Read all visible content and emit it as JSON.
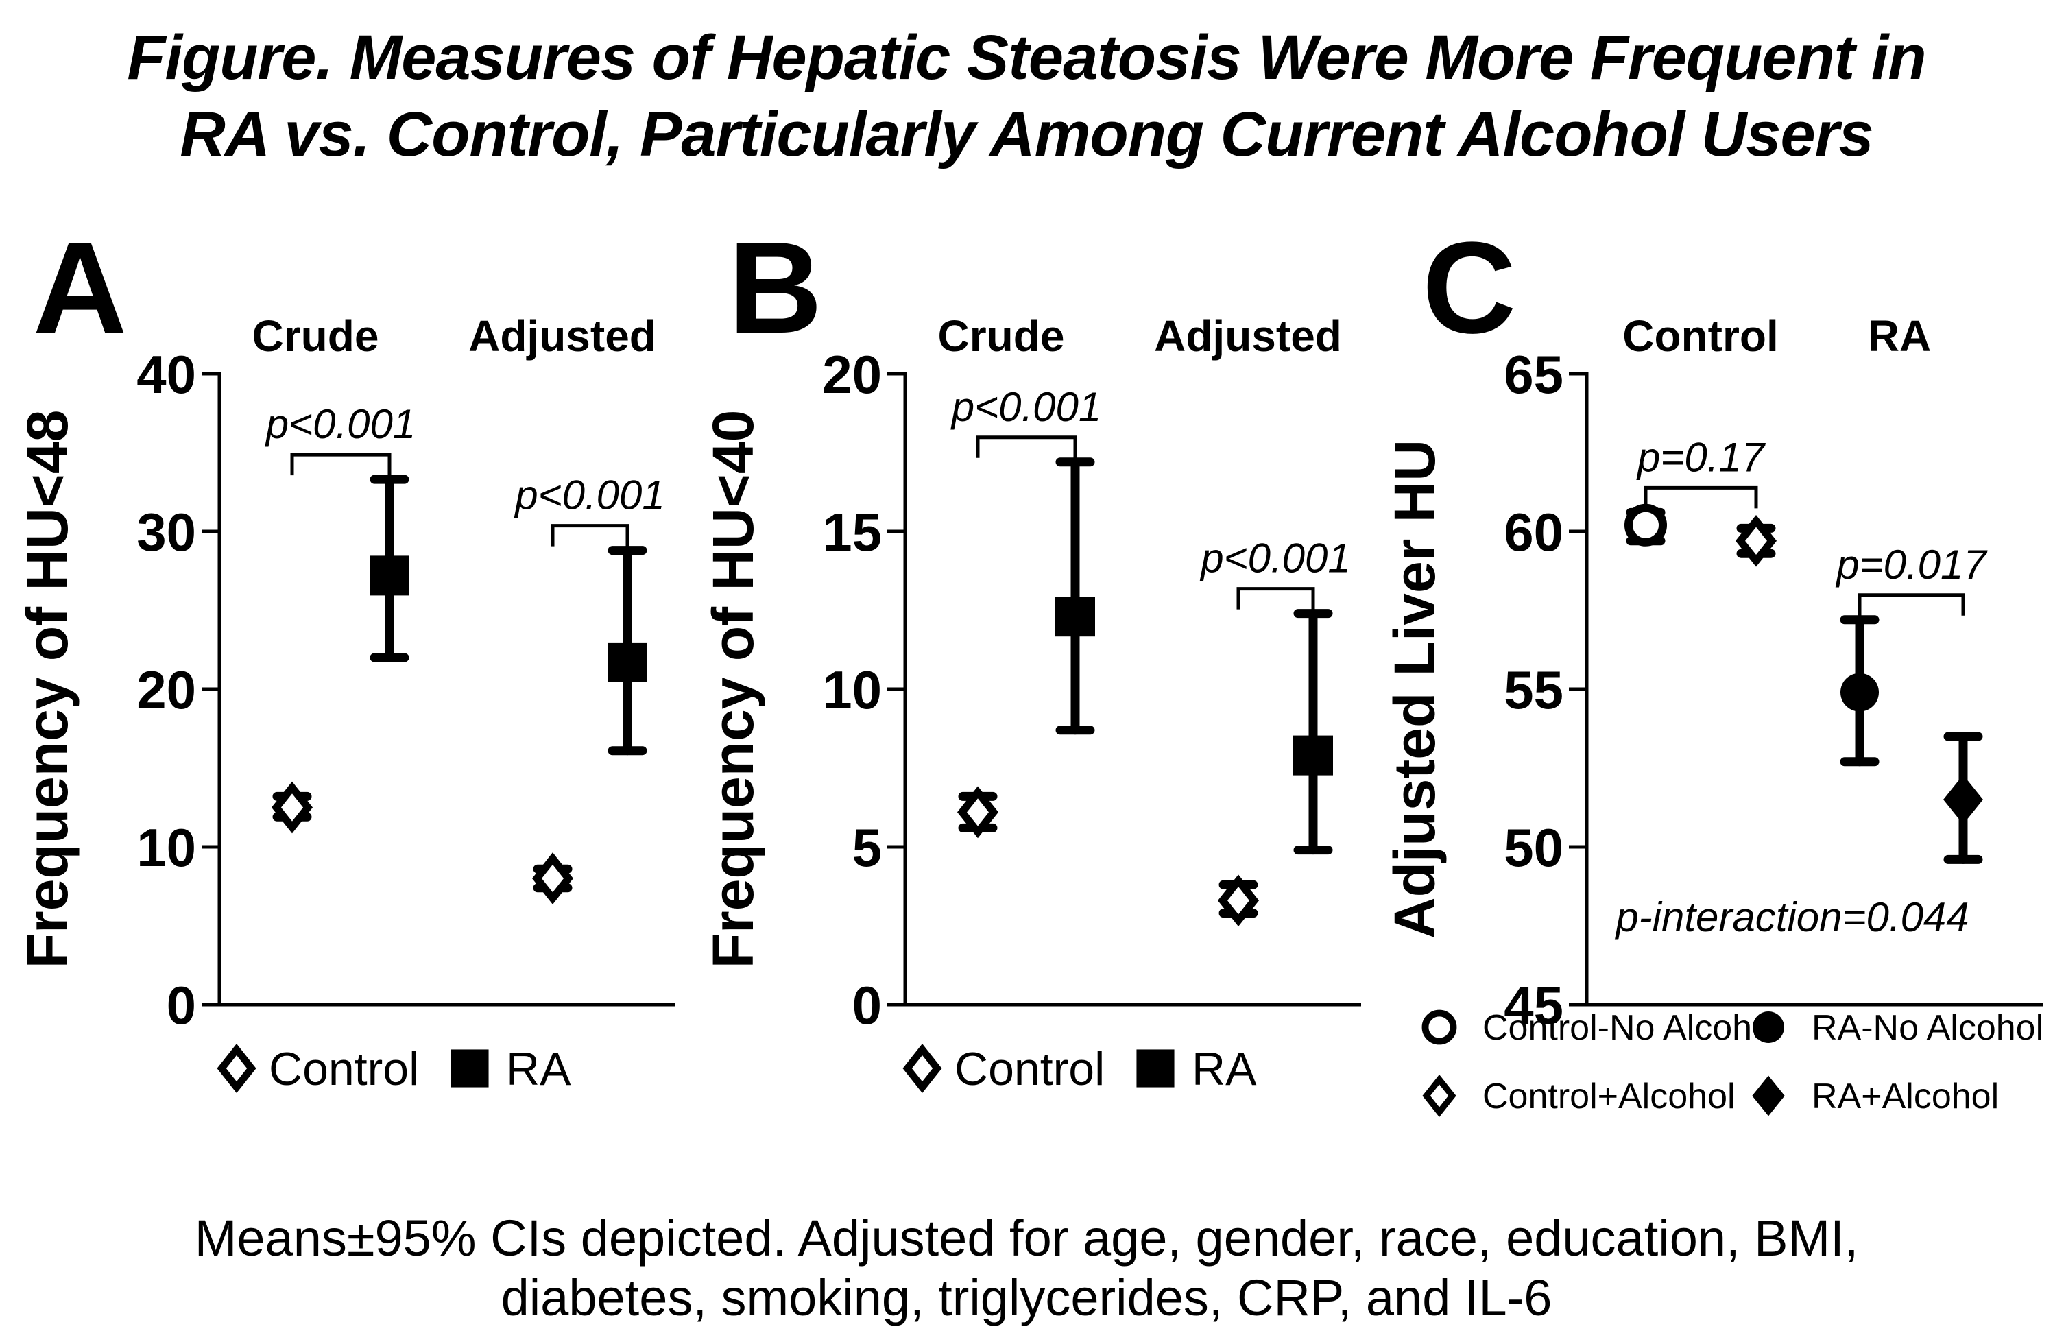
{
  "page": {
    "background": "#ffffff",
    "ink": "#000000"
  },
  "title": {
    "line1": "Figure. Measures of Hepatic Steatosis Were More Frequent in",
    "line2": "RA vs. Control, Particularly Among Current Alcohol Users"
  },
  "footnote": {
    "line1": "Means±95% CIs depicted. Adjusted for age, gender, race, education, BMI,",
    "line2": "diabetes, smoking, triglycerides, CRP, and IL-6"
  },
  "chart_data": [
    {
      "panel": "A",
      "type": "scatter",
      "ylabel": "Frequency of HU<48",
      "ylim": [
        0,
        40
      ],
      "yticks": [
        0,
        10,
        20,
        30,
        40
      ],
      "grid": false,
      "group_headers": [
        "Crude",
        "Adjusted"
      ],
      "points": [
        {
          "label": "Control Crude",
          "series": "Control",
          "marker": "open-diamond",
          "slot": 0,
          "y": 12.5,
          "lo": 11.9,
          "hi": 13.2
        },
        {
          "label": "RA Crude",
          "series": "RA",
          "marker": "filled-square",
          "slot": 1,
          "y": 27.2,
          "lo": 22.0,
          "hi": 33.3
        },
        {
          "label": "Control Adjusted",
          "series": "Control",
          "marker": "open-diamond",
          "slot": 2,
          "y": 8.0,
          "lo": 7.4,
          "hi": 8.6
        },
        {
          "label": "RA Adjusted",
          "series": "RA",
          "marker": "filled-square",
          "slot": 3,
          "y": 21.7,
          "lo": 16.1,
          "hi": 28.8
        }
      ],
      "annotations": [
        {
          "text": "p<0.001",
          "slots": [
            0,
            1
          ]
        },
        {
          "text": "p<0.001",
          "slots": [
            2,
            3
          ]
        }
      ],
      "legend": [
        {
          "label": "Control",
          "marker": "open-diamond"
        },
        {
          "label": "RA",
          "marker": "filled-square"
        }
      ]
    },
    {
      "panel": "B",
      "type": "scatter",
      "ylabel": "Frequency of HU<40",
      "ylim": [
        0,
        20
      ],
      "yticks": [
        0,
        5,
        10,
        15,
        20
      ],
      "grid": false,
      "group_headers": [
        "Crude",
        "Adjusted"
      ],
      "points": [
        {
          "label": "Control Crude",
          "series": "Control",
          "marker": "open-diamond",
          "slot": 0,
          "y": 6.1,
          "lo": 5.6,
          "hi": 6.6
        },
        {
          "label": "RA Crude",
          "series": "RA",
          "marker": "filled-square",
          "slot": 1,
          "y": 12.3,
          "lo": 8.7,
          "hi": 17.2
        },
        {
          "label": "Control Adjusted",
          "series": "Control",
          "marker": "open-diamond",
          "slot": 2,
          "y": 3.3,
          "lo": 2.9,
          "hi": 3.8
        },
        {
          "label": "RA Adjusted",
          "series": "RA",
          "marker": "filled-square",
          "slot": 3,
          "y": 7.9,
          "lo": 4.9,
          "hi": 12.4
        }
      ],
      "annotations": [
        {
          "text": "p<0.001",
          "slots": [
            0,
            1
          ]
        },
        {
          "text": "p<0.001",
          "slots": [
            2,
            3
          ]
        }
      ],
      "legend": [
        {
          "label": "Control",
          "marker": "open-diamond"
        },
        {
          "label": "RA",
          "marker": "filled-square"
        }
      ]
    },
    {
      "panel": "C",
      "type": "scatter",
      "ylabel": "Adjusted Liver HU",
      "ylim": [
        45,
        65
      ],
      "yticks": [
        45,
        50,
        55,
        60,
        65
      ],
      "grid": false,
      "group_headers": [
        "Control",
        "RA"
      ],
      "points": [
        {
          "label": "Control-No Alcohol",
          "series": "Control-No Alcohol",
          "marker": "open-circle",
          "slot": 0,
          "y": 60.2,
          "lo": 59.7,
          "hi": 60.6
        },
        {
          "label": "Control+Alcohol",
          "series": "Control+Alcohol",
          "marker": "open-diamond",
          "slot": 1,
          "y": 59.7,
          "lo": 59.3,
          "hi": 60.1
        },
        {
          "label": "RA-No Alcohol",
          "series": "RA-No Alcohol",
          "marker": "filled-circle",
          "slot": 2,
          "y": 54.9,
          "lo": 52.7,
          "hi": 57.2
        },
        {
          "label": "RA+Alcohol",
          "series": "RA+Alcohol",
          "marker": "filled-diamond",
          "slot": 3,
          "y": 51.5,
          "lo": 49.6,
          "hi": 53.5
        }
      ],
      "annotations": [
        {
          "text": "p=0.17",
          "slots": [
            0,
            1
          ]
        },
        {
          "text": "p=0.017",
          "slots": [
            2,
            3
          ]
        },
        {
          "text": "p-interaction=0.044",
          "floating": true
        }
      ],
      "legend": [
        {
          "label": "Control-No Alcohol",
          "marker": "open-circle"
        },
        {
          "label": "Control+Alcohol",
          "marker": "open-diamond"
        },
        {
          "label": "RA-No Alcohol",
          "marker": "filled-circle"
        },
        {
          "label": "RA+Alcohol",
          "marker": "filled-diamond"
        }
      ]
    }
  ]
}
